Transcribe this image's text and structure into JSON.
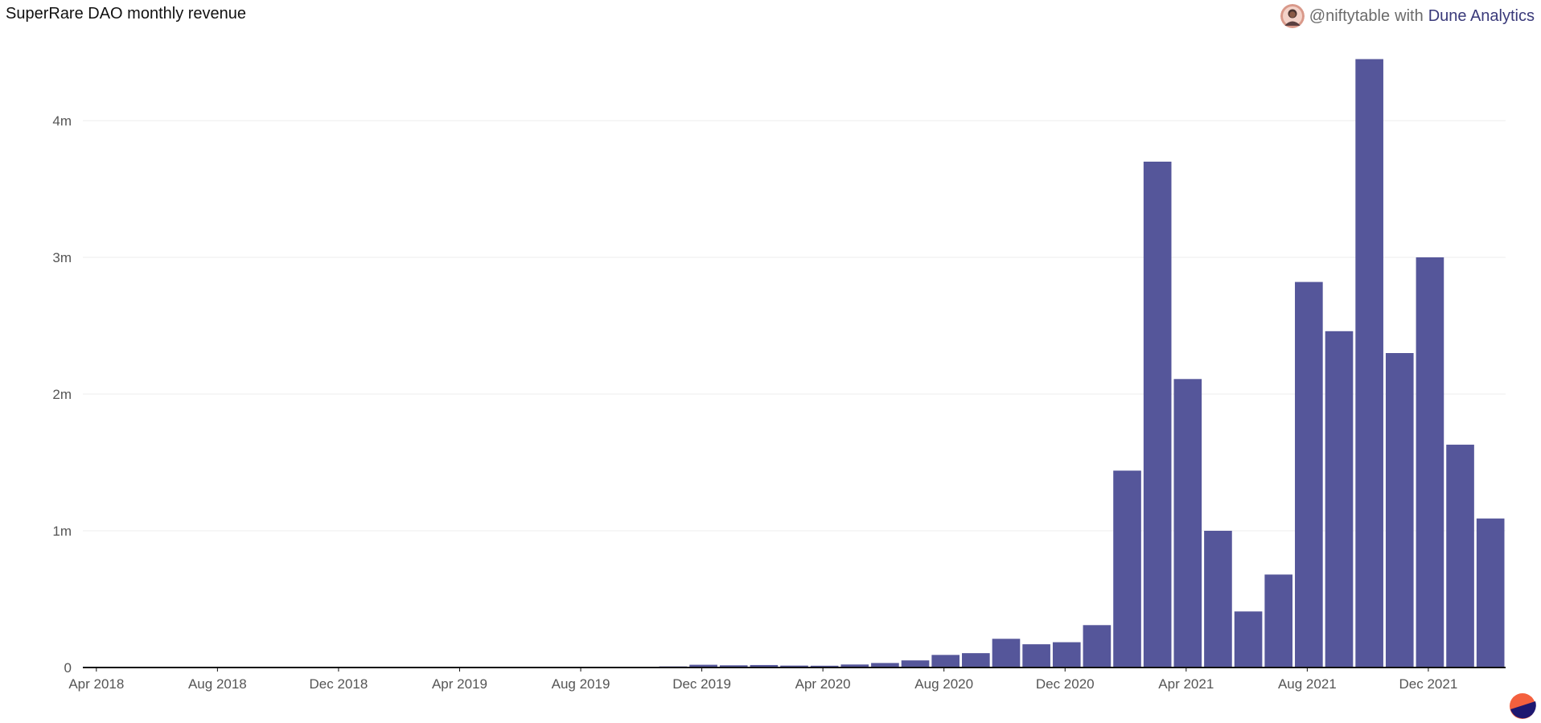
{
  "header": {
    "title": "SuperRare DAO monthly revenue",
    "author": "@niftytable",
    "with_text": "with",
    "brand": "Dune Analytics"
  },
  "colors": {
    "bar": "#55569a",
    "grid": "#ececec",
    "axis": "#111111",
    "logo_orange": "#f4603e",
    "logo_navy": "#1e1870"
  },
  "icons": {
    "avatar": "user-avatar-icon",
    "logo": "dune-logo-icon"
  },
  "chart_data": {
    "type": "bar",
    "title": "SuperRare DAO monthly revenue",
    "xlabel": "",
    "ylabel": "",
    "ylim": [
      0,
      4500000
    ],
    "y_ticks": [
      {
        "value": 0,
        "label": "0"
      },
      {
        "value": 1000000,
        "label": "1m"
      },
      {
        "value": 2000000,
        "label": "2m"
      },
      {
        "value": 3000000,
        "label": "3m"
      },
      {
        "value": 4000000,
        "label": "4m"
      }
    ],
    "x_ticks": [
      "Apr 2018",
      "Aug 2018",
      "Dec 2018",
      "Apr 2019",
      "Aug 2019",
      "Dec 2019",
      "Apr 2020",
      "Aug 2020",
      "Dec 2020",
      "Apr 2021",
      "Aug 2021",
      "Dec 2021"
    ],
    "grid": true,
    "legend": "none",
    "categories": [
      "2018-04",
      "2018-05",
      "2018-06",
      "2018-07",
      "2018-08",
      "2018-09",
      "2018-10",
      "2018-11",
      "2018-12",
      "2019-01",
      "2019-02",
      "2019-03",
      "2019-04",
      "2019-05",
      "2019-06",
      "2019-07",
      "2019-08",
      "2019-09",
      "2019-10",
      "2019-11",
      "2019-12",
      "2020-01",
      "2020-02",
      "2020-03",
      "2020-04",
      "2020-05",
      "2020-06",
      "2020-07",
      "2020-08",
      "2020-09",
      "2020-10",
      "2020-11",
      "2020-12",
      "2021-01",
      "2021-02",
      "2021-03",
      "2021-04",
      "2021-05",
      "2021-06",
      "2021-07",
      "2021-08",
      "2021-09",
      "2021-10",
      "2021-11",
      "2021-12",
      "2022-01",
      "2022-02"
    ],
    "values": [
      2000,
      3000,
      3000,
      4000,
      3000,
      3000,
      4000,
      4000,
      5000,
      4000,
      3000,
      4000,
      4000,
      3000,
      3000,
      4000,
      4000,
      4000,
      4000,
      8000,
      20000,
      16000,
      18000,
      14000,
      13000,
      22000,
      33000,
      52000,
      92000,
      105000,
      210000,
      170000,
      185000,
      310000,
      1440000,
      3700000,
      2110000,
      1000000,
      410000,
      680000,
      2820000,
      2460000,
      4450000,
      2300000,
      3000000,
      1630000,
      1090000
    ]
  }
}
